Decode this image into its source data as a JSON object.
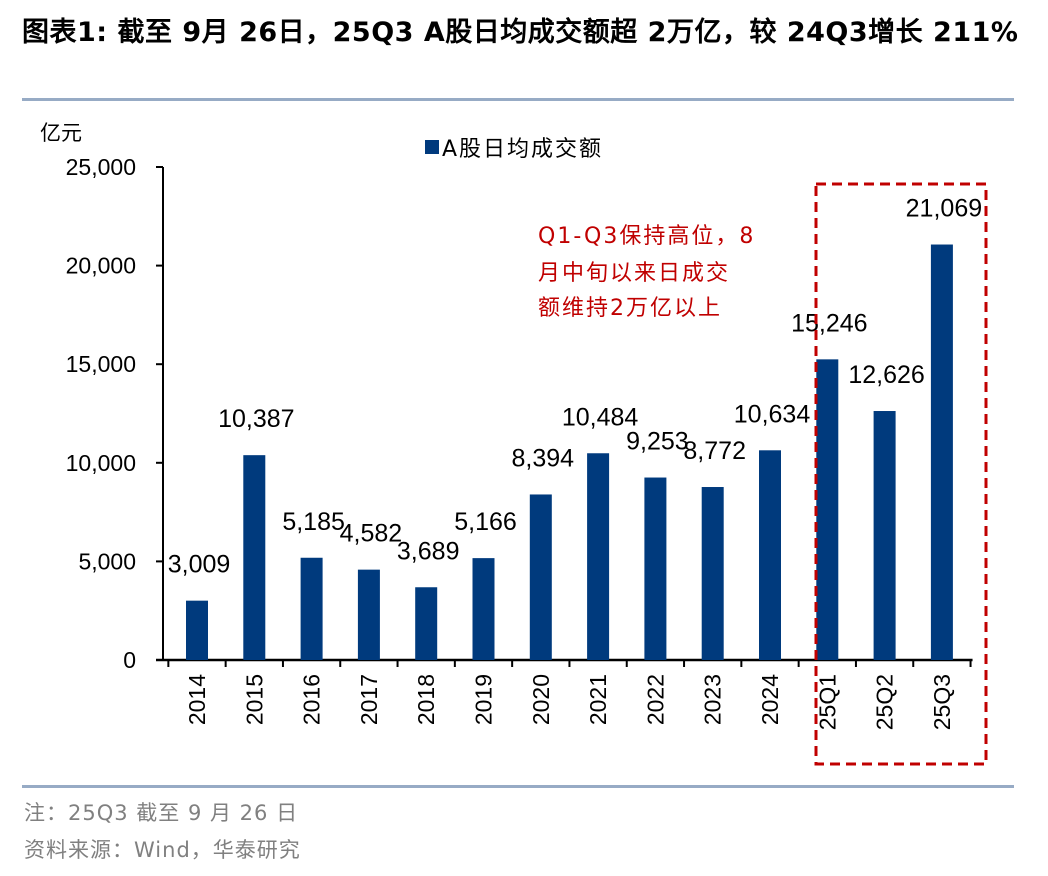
{
  "header": {
    "title": "图表1:  截至 9月 26日，25Q3 A股日均成交额超 2万亿，较 24Q3增长 211%"
  },
  "footer": {
    "note": "注：25Q3 截至 9 月 26 日",
    "source": "资料来源：Wind，华泰研究"
  },
  "chart_data": {
    "type": "bar",
    "title": "截至 9月 26日，25Q3 A股日均成交额超 2万亿，较 24Q3增长 211%",
    "xlabel": "",
    "ylabel": "亿元",
    "ylim": [
      0,
      25000
    ],
    "yticks": [
      0,
      5000,
      10000,
      15000,
      20000,
      25000
    ],
    "ytick_labels": [
      "0",
      "5,000",
      "10,000",
      "15,000",
      "20,000",
      "25,000"
    ],
    "categories": [
      "2014",
      "2015",
      "2016",
      "2017",
      "2018",
      "2019",
      "2020",
      "2021",
      "2022",
      "2023",
      "2024",
      "25Q1",
      "25Q2",
      "25Q3"
    ],
    "series": [
      {
        "name": "A股日均成交额",
        "color": "#003a7d",
        "values": [
          3009,
          10387,
          5185,
          4582,
          3689,
          5166,
          8394,
          10484,
          9253,
          8772,
          10634,
          15246,
          12626,
          21069
        ],
        "labels": [
          "3,009",
          "10,387",
          "5,185",
          "4,582",
          "3,689",
          "5,166",
          "8,394",
          "10,484",
          "9,253",
          "8,772",
          "10,634",
          "15,246",
          "12,626",
          "21,069"
        ]
      }
    ],
    "legend": {
      "placement": "top-center",
      "entries": [
        "A股日均成交额"
      ]
    },
    "grid": false,
    "annotation": {
      "lines": [
        "Q1-Q3保持高位，8",
        "月中旬以来日成交",
        "额维持2万亿以上"
      ],
      "color": "#c00000"
    },
    "highlight_box": {
      "categories": [
        "25Q1",
        "25Q2",
        "25Q3"
      ],
      "style": "dashed",
      "color": "#c00000"
    }
  }
}
